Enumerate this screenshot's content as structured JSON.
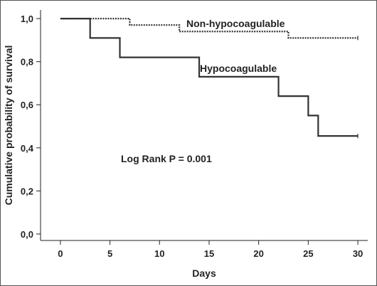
{
  "chart_data": {
    "type": "line",
    "step": true,
    "xlabel": "Days",
    "ylabel": "Cumulative probability of survival",
    "xlim": [
      -2,
      31
    ],
    "ylim": [
      -0.03,
      1.04
    ],
    "xticks": [
      0,
      5,
      10,
      15,
      20,
      25,
      30
    ],
    "xtick_labels": [
      "0",
      "5",
      "10",
      "15",
      "20",
      "25",
      "30"
    ],
    "yticks": [
      0.0,
      0.2,
      0.4,
      0.6,
      0.8,
      1.0
    ],
    "ytick_labels": [
      "0,0",
      "0,2",
      "0,4",
      "0,6",
      "0,8",
      "1,0"
    ],
    "grid": false,
    "series": [
      {
        "name": "Non-hypocoagulable",
        "style": "dotted",
        "color": "#333333",
        "x": [
          0,
          7,
          12,
          23,
          30
        ],
        "y": [
          1.0,
          0.97,
          0.94,
          0.91,
          0.91
        ]
      },
      {
        "name": "Hypocoagulable",
        "style": "solid",
        "color": "#333333",
        "x": [
          0,
          3,
          6,
          14,
          22,
          25,
          26,
          30
        ],
        "y": [
          1.0,
          0.91,
          0.82,
          0.73,
          0.64,
          0.55,
          0.455,
          0.455
        ]
      }
    ],
    "annotations": [
      {
        "text": "Log Rank P = 0.001"
      }
    ]
  }
}
